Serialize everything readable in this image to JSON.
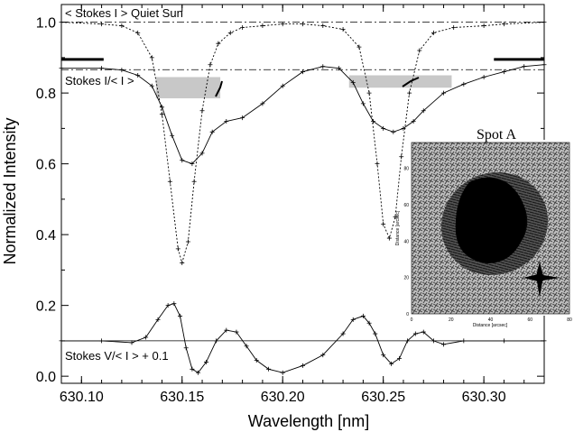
{
  "chart_data": {
    "type": "line",
    "title": "",
    "xlabel": "Wavelength [nm]",
    "ylabel": "Normalized Intensity",
    "xlim": [
      630.09,
      630.33
    ],
    "ylim": [
      -0.02,
      1.05
    ],
    "x_ticks": [
      "630.10",
      "630.15",
      "630.20",
      "630.25",
      "630.30"
    ],
    "y_ticks": [
      "0.0",
      "0.2",
      "0.4",
      "0.6",
      "0.8",
      "1.0"
    ],
    "x_tick_values": [
      630.1,
      630.15,
      630.2,
      630.25,
      630.3
    ],
    "y_tick_values": [
      0.0,
      0.2,
      0.4,
      0.6,
      0.8,
      1.0
    ],
    "annotations": {
      "quiet_sun": "< Stokes I > Quiet Sun",
      "stokes_i": "Stokes I/< I >",
      "stokes_v": "Stokes V/< I > + 0.1"
    },
    "reference_lines": [
      1.0,
      0.866,
      0.1
    ],
    "series": [
      {
        "style": "dotted-plus",
        "x": [
          630.09,
          630.11,
          630.12,
          630.128,
          630.135,
          630.14,
          630.144,
          630.148,
          630.15,
          630.153,
          630.156,
          630.16,
          630.164,
          630.168,
          630.174,
          630.18,
          630.19,
          630.2,
          630.21,
          630.22,
          630.23,
          630.238,
          630.243,
          630.247,
          630.25,
          630.253,
          630.256,
          630.259,
          630.263,
          630.268,
          630.275,
          630.285,
          630.3,
          630.31,
          630.33
        ],
        "y": [
          1.0,
          0.995,
          0.99,
          0.97,
          0.9,
          0.74,
          0.55,
          0.36,
          0.32,
          0.38,
          0.55,
          0.75,
          0.88,
          0.94,
          0.97,
          0.985,
          0.99,
          0.995,
          0.995,
          0.99,
          0.98,
          0.93,
          0.8,
          0.6,
          0.43,
          0.39,
          0.45,
          0.62,
          0.8,
          0.92,
          0.97,
          0.985,
          0.99,
          0.995,
          1.0
        ]
      },
      {
        "style": "solid-plus",
        "x": [
          630.09,
          630.11,
          630.12,
          630.128,
          630.135,
          630.14,
          630.145,
          630.15,
          630.155,
          630.16,
          630.165,
          630.172,
          630.18,
          630.19,
          630.2,
          630.21,
          630.22,
          630.228,
          630.235,
          630.24,
          630.245,
          630.25,
          630.255,
          630.26,
          630.265,
          630.27,
          630.28,
          630.29,
          630.3,
          630.31,
          630.32,
          630.33
        ],
        "y": [
          0.87,
          0.87,
          0.865,
          0.85,
          0.82,
          0.76,
          0.68,
          0.61,
          0.6,
          0.63,
          0.69,
          0.72,
          0.73,
          0.77,
          0.82,
          0.86,
          0.875,
          0.87,
          0.83,
          0.77,
          0.72,
          0.7,
          0.69,
          0.7,
          0.72,
          0.75,
          0.8,
          0.825,
          0.845,
          0.86,
          0.875,
          0.88
        ]
      },
      {
        "style": "solid-plus",
        "x": [
          630.09,
          630.11,
          630.125,
          630.132,
          630.138,
          630.143,
          630.146,
          630.149,
          630.152,
          630.155,
          630.158,
          630.162,
          630.167,
          630.172,
          630.177,
          630.182,
          630.187,
          630.193,
          630.2,
          630.21,
          630.22,
          630.23,
          630.235,
          630.24,
          630.243,
          630.246,
          630.25,
          630.254,
          630.258,
          630.262,
          630.266,
          630.27,
          630.275,
          630.28,
          630.29,
          630.31,
          630.33
        ],
        "y": [
          0.1,
          0.1,
          0.095,
          0.11,
          0.16,
          0.2,
          0.205,
          0.17,
          0.08,
          0.02,
          0.01,
          0.04,
          0.1,
          0.13,
          0.125,
          0.085,
          0.045,
          0.02,
          0.01,
          0.03,
          0.06,
          0.12,
          0.16,
          0.17,
          0.15,
          0.12,
          0.06,
          0.035,
          0.05,
          0.1,
          0.12,
          0.125,
          0.1,
          0.09,
          0.1,
          0.1,
          0.1
        ]
      }
    ],
    "shaded_bands": [
      {
        "x": [
          630.137,
          630.169
        ],
        "y": [
          0.785,
          0.845
        ]
      },
      {
        "x": [
          630.233,
          630.284
        ],
        "y": [
          0.815,
          0.85
        ]
      }
    ],
    "continuum_bars": [
      {
        "x": [
          630.09,
          630.111
        ],
        "y": 0.895
      },
      {
        "x": [
          630.305,
          630.33
        ],
        "y": 0.895
      }
    ],
    "inset": {
      "title": "Spot A",
      "xlabel": "Distance [arcsec]",
      "ylabel": "Distance [arcsec]",
      "x_ticks": [
        "0",
        "20",
        "40",
        "60",
        "80"
      ],
      "y_ticks": [
        "0",
        "20",
        "40",
        "60",
        "80"
      ]
    }
  }
}
